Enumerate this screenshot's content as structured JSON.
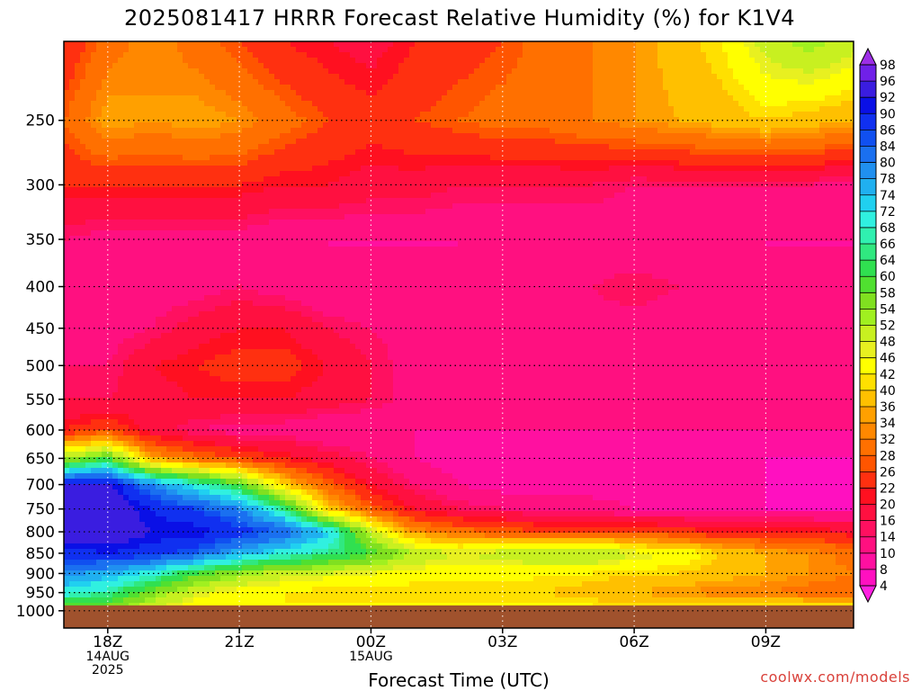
{
  "chart_data": {
    "type": "heatmap",
    "title": "2025081417 HRRR Forecast Relative Humidity (%) for K1V4",
    "xlabel": "Forecast Time (UTC)",
    "ylabel": "",
    "credit": "coolwx.com/models",
    "x_ticks": [
      {
        "hour": 1,
        "lines": [
          "18Z",
          "14AUG",
          "2025"
        ]
      },
      {
        "hour": 4,
        "lines": [
          "21Z"
        ]
      },
      {
        "hour": 7,
        "lines": [
          "00Z",
          "15AUG"
        ]
      },
      {
        "hour": 10,
        "lines": [
          "03Z"
        ]
      },
      {
        "hour": 13,
        "lines": [
          "06Z"
        ]
      },
      {
        "hour": 16,
        "lines": [
          "09Z"
        ]
      }
    ],
    "xlim": [
      0,
      18
    ],
    "y_scale": "log-pressure",
    "ylim_hPa": [
      1050,
      200
    ],
    "y_ticks": [
      250,
      300,
      350,
      400,
      450,
      500,
      550,
      600,
      650,
      700,
      750,
      800,
      850,
      900,
      950,
      1000
    ],
    "surface_pressure_hPa": 985,
    "grid": true,
    "colorbar_ticks": [
      98,
      96,
      92,
      90,
      86,
      84,
      80,
      78,
      74,
      72,
      68,
      66,
      64,
      60,
      58,
      54,
      52,
      48,
      46,
      42,
      40,
      36,
      34,
      32,
      28,
      26,
      22,
      20,
      16,
      14,
      10,
      8,
      4
    ],
    "colorbar_colors": [
      "#9d2ee6",
      "#7020e8",
      "#3a1de0",
      "#0a10e6",
      "#1030f0",
      "#1050f0",
      "#1a70f0",
      "#2090f0",
      "#20b0f0",
      "#20d0f0",
      "#30f0e0",
      "#30f0b0",
      "#30e880",
      "#30e050",
      "#50e030",
      "#80e020",
      "#a0f020",
      "#c8f020",
      "#e8f020",
      "#ffff00",
      "#ffe000",
      "#ffc000",
      "#ffa000",
      "#ff8800",
      "#ff7000",
      "#ff5500",
      "#ff3010",
      "#ff1020",
      "#ff1040",
      "#ff1060",
      "#ff1080",
      "#ff10a0",
      "#ff10c0",
      "#ff20e0"
    ],
    "rh_grid": {
      "pressure_hPa": [
        200,
        250,
        300,
        350,
        400,
        450,
        500,
        550,
        600,
        650,
        700,
        750,
        800,
        850,
        900,
        950,
        985
      ],
      "hours": [
        0,
        1,
        2,
        3,
        4,
        5,
        6,
        7,
        8,
        9,
        10,
        11,
        12,
        13,
        14,
        15,
        16,
        17,
        18
      ],
      "values": [
        [
          22,
          30,
          34,
          30,
          26,
          22,
          20,
          18,
          22,
          24,
          26,
          30,
          32,
          34,
          38,
          42,
          50,
          54,
          50
        ],
        [
          28,
          36,
          34,
          36,
          34,
          30,
          26,
          24,
          26,
          28,
          30,
          30,
          32,
          34,
          36,
          38,
          40,
          38,
          36
        ],
        [
          22,
          22,
          22,
          22,
          22,
          20,
          20,
          18,
          18,
          16,
          16,
          16,
          16,
          14,
          14,
          14,
          14,
          14,
          12
        ],
        [
          14,
          12,
          12,
          12,
          12,
          10,
          10,
          10,
          10,
          10,
          10,
          10,
          10,
          10,
          10,
          10,
          10,
          10,
          10
        ],
        [
          12,
          12,
          12,
          12,
          14,
          12,
          10,
          10,
          10,
          10,
          12,
          14,
          14,
          16,
          14,
          12,
          10,
          10,
          10
        ],
        [
          14,
          12,
          14,
          18,
          20,
          20,
          16,
          14,
          12,
          10,
          10,
          10,
          12,
          12,
          10,
          10,
          10,
          10,
          10
        ],
        [
          14,
          14,
          20,
          22,
          24,
          24,
          20,
          16,
          12,
          10,
          10,
          10,
          10,
          10,
          10,
          10,
          10,
          10,
          10
        ],
        [
          16,
          16,
          18,
          20,
          20,
          20,
          18,
          16,
          12,
          10,
          10,
          10,
          10,
          10,
          10,
          10,
          10,
          10,
          10
        ],
        [
          22,
          26,
          18,
          14,
          12,
          12,
          10,
          10,
          10,
          10,
          10,
          10,
          10,
          10,
          10,
          10,
          10,
          10,
          10
        ],
        [
          54,
          60,
          36,
          30,
          26,
          22,
          18,
          14,
          10,
          8,
          8,
          8,
          8,
          8,
          8,
          8,
          8,
          8,
          8
        ],
        [
          92,
          94,
          80,
          70,
          60,
          40,
          28,
          20,
          14,
          10,
          8,
          8,
          8,
          8,
          8,
          8,
          8,
          6,
          8
        ],
        [
          94,
          96,
          90,
          86,
          80,
          66,
          40,
          28,
          20,
          16,
          14,
          12,
          12,
          10,
          10,
          10,
          8,
          8,
          8
        ],
        [
          96,
          96,
          92,
          92,
          88,
          84,
          74,
          50,
          34,
          30,
          28,
          26,
          26,
          26,
          24,
          22,
          22,
          22,
          20
        ],
        [
          88,
          90,
          88,
          84,
          76,
          70,
          66,
          60,
          52,
          48,
          50,
          54,
          54,
          48,
          46,
          40,
          36,
          34,
          30
        ],
        [
          80,
          76,
          70,
          60,
          54,
          50,
          48,
          46,
          44,
          44,
          44,
          42,
          42,
          40,
          40,
          38,
          36,
          34,
          32
        ],
        [
          70,
          66,
          56,
          48,
          44,
          42,
          40,
          40,
          40,
          40,
          40,
          40,
          38,
          36,
          34,
          32,
          32,
          30,
          30
        ],
        [
          60,
          58,
          50,
          44,
          42,
          42,
          42,
          42,
          42,
          42,
          42,
          42,
          42,
          40,
          40,
          40,
          40,
          40,
          40
        ]
      ]
    }
  }
}
